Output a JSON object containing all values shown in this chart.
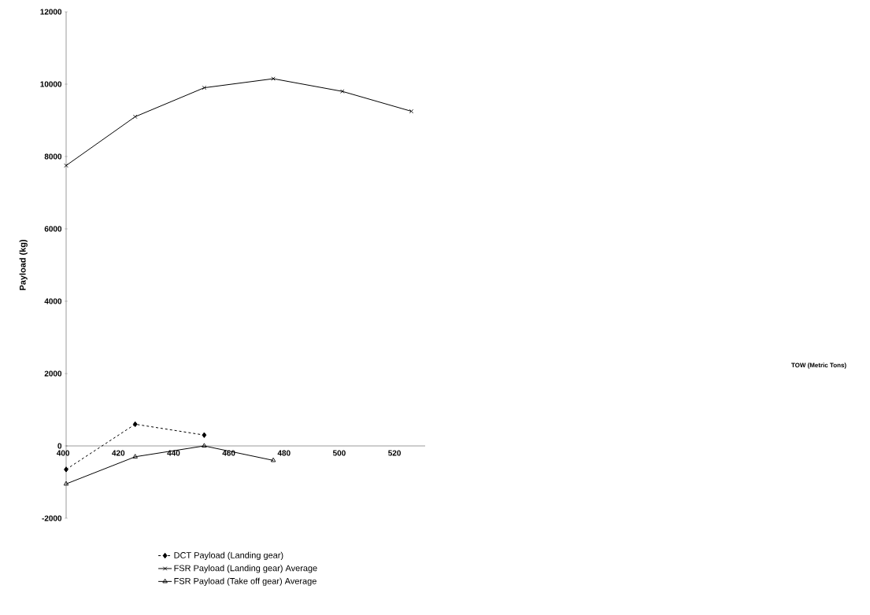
{
  "chart_data": {
    "type": "line",
    "annotations": [
      "TOW (Metric Tons)"
    ],
    "ylabel": "Payload (kg)",
    "x": [
      400,
      425,
      450,
      475,
      500,
      525
    ],
    "series": [
      {
        "name": "DCT Payload (Landing gear)",
        "color": "#000000",
        "marker": "diamond",
        "line_style": "dashed",
        "values": [
          -650,
          600,
          300,
          null,
          null,
          null
        ]
      },
      {
        "name": "FSR Payload (Landing gear) Average",
        "color": "#000000",
        "marker": "cross",
        "line_style": "solid",
        "values": [
          7750,
          9100,
          9900,
          10150,
          9800,
          9250
        ]
      },
      {
        "name": "FSR Payload (Take off gear) Average",
        "color": "#000000",
        "marker": "triangle",
        "line_style": "solid",
        "values": [
          -1050,
          -300,
          0,
          -400,
          null,
          null
        ]
      }
    ],
    "xlim": [
      400,
      530
    ],
    "xticks": [
      400,
      420,
      440,
      460,
      480,
      500,
      520
    ],
    "ylim": [
      -2000,
      12000
    ],
    "yticks": [
      -2000,
      0,
      2000,
      4000,
      6000,
      8000,
      10000,
      12000
    ],
    "grid": false,
    "legend": "bottom"
  }
}
